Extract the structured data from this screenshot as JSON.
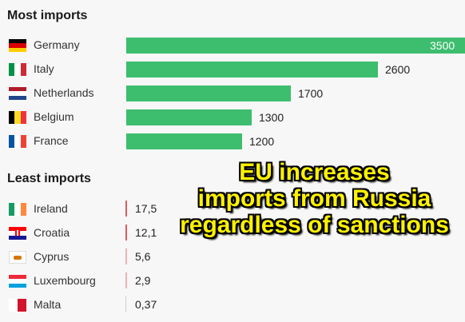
{
  "chart_data": [
    {
      "type": "bar",
      "orientation": "horizontal",
      "title": "Most imports",
      "categories": [
        "Germany",
        "Italy",
        "Netherlands",
        "Belgium",
        "France"
      ],
      "values": [
        3500,
        2600,
        1700,
        1300,
        1200
      ],
      "value_labels": [
        "3500",
        "2600",
        "1700",
        "1300",
        "1200"
      ],
      "xlim": [
        0,
        3500
      ],
      "grid": false,
      "bar_color": "#3dbd6e"
    },
    {
      "type": "bar",
      "orientation": "horizontal",
      "title": "Least imports",
      "categories": [
        "Ireland",
        "Croatia",
        "Cyprus",
        "Luxembourg",
        "Malta"
      ],
      "values": [
        17.5,
        12.1,
        5.6,
        2.9,
        0.37
      ],
      "value_labels": [
        "17,5",
        "12,1",
        "5,6",
        "2,9",
        "0,37"
      ],
      "grid": false,
      "bar_color": "#e35a5a"
    }
  ],
  "flags": {
    "Germany": [
      "#000000",
      "#dd0000",
      "#ffce00"
    ],
    "Italy": [
      "#009246",
      "#ffffff",
      "#ce2b37"
    ],
    "Netherlands": [
      "#ae1c28",
      "#ffffff",
      "#21468b"
    ],
    "Belgium": [
      "#000000",
      "#fdda24",
      "#ef3340"
    ],
    "France": [
      "#0055a4",
      "#ffffff",
      "#ef4135"
    ],
    "Ireland": [
      "#169b62",
      "#ffffff",
      "#ff883e"
    ],
    "Croatia": [
      "#ff0000",
      "#ffffff",
      "#171796"
    ],
    "Luxembourg": [
      "#ed2939",
      "#ffffff",
      "#00a1de"
    ]
  },
  "headline": {
    "line1": "EU increases",
    "line2": "imports from Russia",
    "line3": "regardless of sanctions",
    "color": "#fff200"
  }
}
